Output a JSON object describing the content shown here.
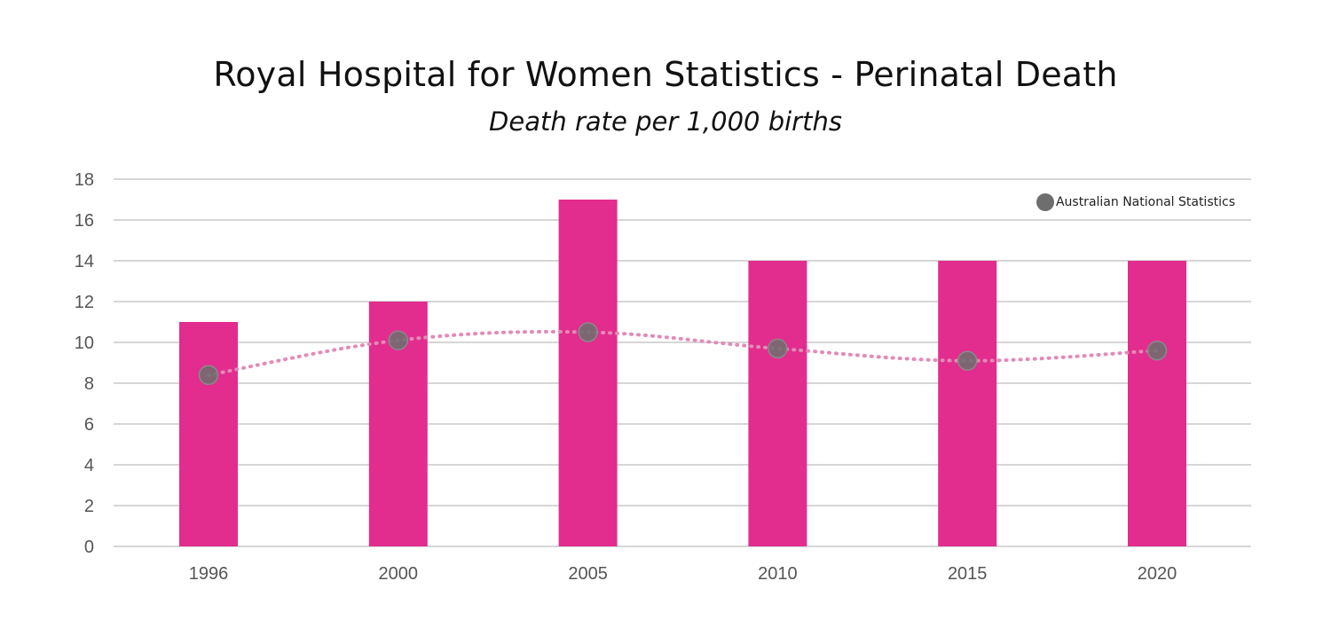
{
  "chart_data": {
    "type": "bar",
    "title": "Royal Hospital for Women Statistics - Perinatal Death",
    "subtitle": "Death rate per 1,000 births",
    "categories": [
      "1996",
      "2000",
      "2005",
      "2010",
      "2015",
      "2020"
    ],
    "series": [
      {
        "type": "bar",
        "values": [
          11,
          12,
          17,
          14,
          14,
          14
        ],
        "color": "#e22d8e"
      },
      {
        "type": "line",
        "name": "Australian National Statistics",
        "values": [
          8.4,
          10.1,
          10.5,
          9.7,
          9.1,
          9.6
        ],
        "color": "#6e6e6e",
        "line_color": "#e38ab8",
        "line_style": "dotted"
      }
    ],
    "yticks": [
      "0",
      "2",
      "4",
      "6",
      "8",
      "10",
      "12",
      "14",
      "16",
      "18"
    ],
    "ylim": [
      0,
      18
    ],
    "grid": true,
    "legend_position": "top-right"
  }
}
